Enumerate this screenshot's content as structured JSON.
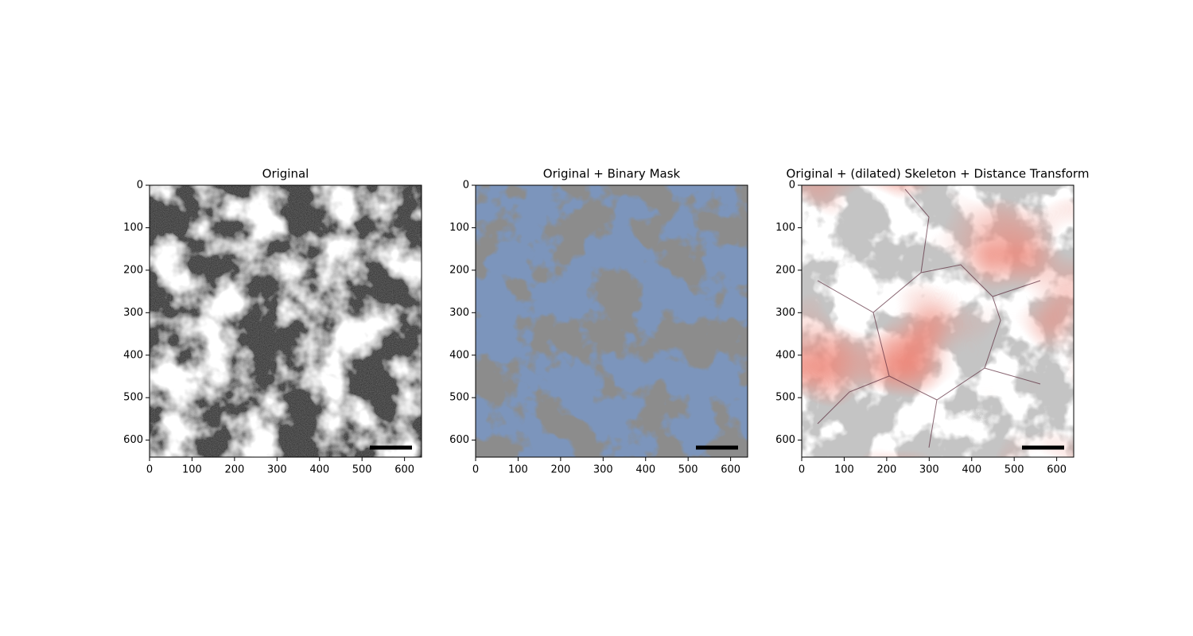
{
  "chart_data": [
    {
      "type": "image",
      "title": "Original",
      "xlim": [
        0,
        640
      ],
      "ylim": [
        640,
        0
      ],
      "xticks": [
        0,
        100,
        200,
        300,
        400,
        500,
        600
      ],
      "yticks": [
        0,
        100,
        200,
        300,
        400,
        500,
        600
      ]
    },
    {
      "type": "image",
      "title": "Original + Binary Mask",
      "xlim": [
        0,
        640
      ],
      "ylim": [
        640,
        0
      ],
      "xticks": [
        0,
        100,
        200,
        300,
        400,
        500,
        600
      ],
      "yticks": [
        0,
        100,
        200,
        300,
        400,
        500,
        600
      ]
    },
    {
      "type": "image",
      "title": "Original + (dilated) Skeleton + Distance Transform",
      "xlim": [
        0,
        640
      ],
      "ylim": [
        640,
        0
      ],
      "xticks": [
        0,
        100,
        200,
        300,
        400,
        500,
        600
      ],
      "yticks": [
        0,
        100,
        200,
        300,
        400,
        500,
        600
      ]
    }
  ]
}
